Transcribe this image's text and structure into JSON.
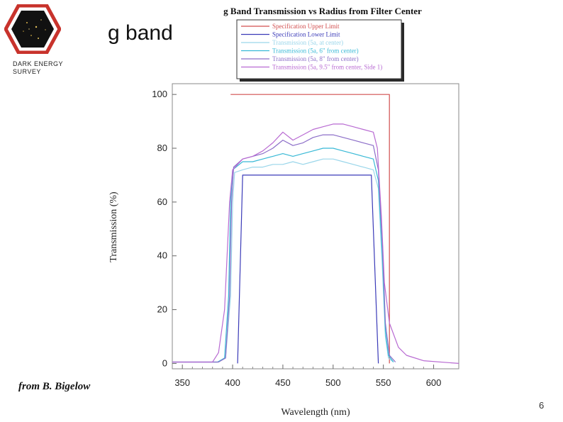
{
  "slide": {
    "title": "g band",
    "org_lines": "DARK ENERGY\nSURVEY",
    "credit": "from B. Bigelow",
    "page_number": "6"
  },
  "colors": {
    "logo_border": "#c8332c",
    "logo_fill": "#111111"
  },
  "chart_data": {
    "type": "line",
    "title": "g Band Transmission vs Radius from Filter Center",
    "xlabel": "Wavelength (nm)",
    "ylabel": "Transmission (%)",
    "xlim": [
      340,
      625
    ],
    "ylim": [
      -2,
      104
    ],
    "x_ticks": [
      350,
      400,
      450,
      500,
      550,
      600
    ],
    "y_ticks": [
      0,
      20,
      40,
      60,
      80,
      100
    ],
    "legend_position": "top",
    "series": [
      {
        "name": "Specification Upper Limit",
        "color": "#d24f4f",
        "points": [
          [
            398,
            100
          ],
          [
            556,
            100
          ],
          [
            556,
            0
          ]
        ]
      },
      {
        "name": "Specification Lower Limit",
        "color": "#3a3ab8",
        "points": [
          [
            405,
            0
          ],
          [
            410,
            70
          ],
          [
            538,
            70
          ],
          [
            545,
            0
          ]
        ]
      },
      {
        "name": "Transmission (5a, at center)",
        "color": "#9ad6ea",
        "points": [
          [
            340,
            0.5
          ],
          [
            385,
            0.5
          ],
          [
            393,
            2
          ],
          [
            398,
            25
          ],
          [
            400,
            60
          ],
          [
            402,
            71
          ],
          [
            410,
            72
          ],
          [
            420,
            73
          ],
          [
            430,
            73
          ],
          [
            440,
            74
          ],
          [
            450,
            74
          ],
          [
            460,
            75
          ],
          [
            470,
            74
          ],
          [
            480,
            75
          ],
          [
            490,
            76
          ],
          [
            500,
            76
          ],
          [
            510,
            75
          ],
          [
            520,
            74
          ],
          [
            530,
            73
          ],
          [
            540,
            72
          ],
          [
            545,
            65
          ],
          [
            549,
            35
          ],
          [
            552,
            10
          ],
          [
            555,
            2
          ],
          [
            560,
            0.5
          ]
        ]
      },
      {
        "name": "Transmission (5a, 6\" from center)",
        "color": "#38b9d6",
        "points": [
          [
            340,
            0.5
          ],
          [
            385,
            0.5
          ],
          [
            392,
            2
          ],
          [
            396,
            25
          ],
          [
            398,
            60
          ],
          [
            400,
            72
          ],
          [
            410,
            75
          ],
          [
            420,
            75
          ],
          [
            430,
            76
          ],
          [
            440,
            77
          ],
          [
            450,
            78
          ],
          [
            460,
            77
          ],
          [
            470,
            78
          ],
          [
            480,
            79
          ],
          [
            490,
            80
          ],
          [
            500,
            80
          ],
          [
            510,
            79
          ],
          [
            520,
            78
          ],
          [
            530,
            77
          ],
          [
            540,
            76
          ],
          [
            545,
            68
          ],
          [
            549,
            40
          ],
          [
            552,
            12
          ],
          [
            555,
            3
          ],
          [
            560,
            0.5
          ]
        ]
      },
      {
        "name": "Transmission (5a, 8\" from center)",
        "color": "#8c6ec8",
        "points": [
          [
            340,
            0.5
          ],
          [
            386,
            0.5
          ],
          [
            393,
            2
          ],
          [
            397,
            25
          ],
          [
            399,
            60
          ],
          [
            401,
            73
          ],
          [
            410,
            76
          ],
          [
            420,
            77
          ],
          [
            430,
            78
          ],
          [
            440,
            80
          ],
          [
            450,
            83
          ],
          [
            460,
            81
          ],
          [
            470,
            82
          ],
          [
            480,
            84
          ],
          [
            490,
            85
          ],
          [
            500,
            85
          ],
          [
            510,
            84
          ],
          [
            520,
            83
          ],
          [
            530,
            82
          ],
          [
            540,
            81
          ],
          [
            545,
            72
          ],
          [
            549,
            45
          ],
          [
            552,
            15
          ],
          [
            556,
            3
          ],
          [
            562,
            0.5
          ]
        ]
      },
      {
        "name": "Transmission (5a, 9.5\" from center, Side 1)",
        "color": "#b86ad2",
        "points": [
          [
            340,
            0.5
          ],
          [
            380,
            0.5
          ],
          [
            386,
            4
          ],
          [
            392,
            20
          ],
          [
            397,
            60
          ],
          [
            400,
            72
          ],
          [
            410,
            76
          ],
          [
            420,
            77
          ],
          [
            430,
            79
          ],
          [
            440,
            82
          ],
          [
            450,
            86
          ],
          [
            460,
            83
          ],
          [
            470,
            85
          ],
          [
            480,
            87
          ],
          [
            490,
            88
          ],
          [
            500,
            89
          ],
          [
            510,
            89
          ],
          [
            520,
            88
          ],
          [
            530,
            87
          ],
          [
            540,
            86
          ],
          [
            544,
            80
          ],
          [
            548,
            55
          ],
          [
            551,
            30
          ],
          [
            556,
            15
          ],
          [
            565,
            6
          ],
          [
            573,
            3
          ],
          [
            590,
            1
          ],
          [
            625,
            0
          ]
        ]
      }
    ]
  }
}
